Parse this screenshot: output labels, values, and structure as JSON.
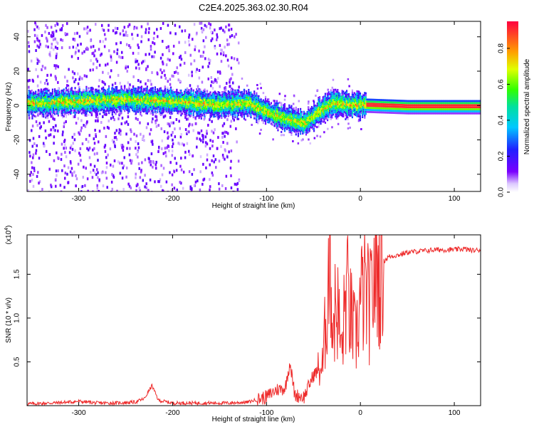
{
  "title": "C2E4.2025.363.02.30.R04",
  "colors": {
    "snr_line": "#ee2a2a",
    "axis": "#000000",
    "background": "#ffffff"
  },
  "chart_data": [
    {
      "type": "heatmap",
      "xlabel": "Height of straight line (km)",
      "ylabel": "Frequency (Hz)",
      "xlim": [
        -355,
        128
      ],
      "ylim": [
        -50,
        49
      ],
      "xticks": [
        -300,
        -200,
        -100,
        0,
        100
      ],
      "yticks": [
        -40,
        -20,
        0,
        20,
        40
      ],
      "colorbar": {
        "label": "Normalized spectral amplitude",
        "range": [
          0,
          0.95
        ],
        "ticks": [
          "0.0",
          "0.2",
          "0.4",
          "0.6",
          "0.8"
        ],
        "colormap": "rainbow (violet to red)"
      },
      "ridge": {
        "description": "high-amplitude frequency trace vs height",
        "points": [
          [
            -340,
            2
          ],
          [
            -300,
            3
          ],
          [
            -250,
            4
          ],
          [
            -200,
            3
          ],
          [
            -150,
            1
          ],
          [
            -120,
            2
          ],
          [
            -100,
            -3
          ],
          [
            -80,
            -7
          ],
          [
            -60,
            -10
          ],
          [
            -45,
            -3
          ],
          [
            -30,
            2
          ],
          [
            -15,
            1
          ],
          [
            0,
            1
          ],
          [
            50,
            0
          ],
          [
            128,
            0
          ]
        ]
      },
      "notes": "scattered low-amplitude speckle below about -130 km; clean narrow red band above 0 km"
    },
    {
      "type": "line",
      "xlabel": "Height of straight line (km)",
      "ylabel": "SNR (10 * v/v)",
      "multiplier": "(x10",
      "multiplier_exp": "4",
      "multiplier_close": ")",
      "xlim": [
        -355,
        128
      ],
      "ylim": [
        0,
        1.95
      ],
      "xticks": [
        -300,
        -200,
        -100,
        0,
        100
      ],
      "yticks": [
        "0.5",
        "1.0",
        "1.5"
      ],
      "series": [
        {
          "x": [
            -355,
            -330,
            -310,
            -300,
            -280,
            -260,
            -240,
            -230,
            -222,
            -215,
            -200,
            -180,
            -160,
            -140,
            -120,
            -100,
            -90,
            -80,
            -75,
            -70,
            -60,
            -50,
            -45,
            -40,
            -35,
            -32,
            -30,
            -25,
            -20,
            -15,
            -10,
            -5,
            0,
            5,
            10,
            15,
            20,
            25,
            30,
            40,
            50,
            60,
            70,
            80,
            90,
            100,
            110,
            120,
            128
          ],
          "values": [
            0.02,
            0.03,
            0.04,
            0.05,
            0.03,
            0.03,
            0.04,
            0.08,
            0.23,
            0.06,
            0.03,
            0.03,
            0.03,
            0.03,
            0.04,
            0.1,
            0.18,
            0.2,
            0.5,
            0.12,
            0.1,
            0.35,
            0.4,
            0.45,
            1.3,
            1.95,
            0.9,
            1.2,
            0.6,
            1.35,
            1.0,
            0.75,
            1.2,
            1.3,
            1.1,
            1.5,
            1.55,
            1.65,
            1.7,
            1.72,
            1.75,
            1.76,
            1.77,
            1.78,
            1.78,
            1.78,
            1.79,
            1.77,
            1.78
          ]
        }
      ]
    }
  ]
}
